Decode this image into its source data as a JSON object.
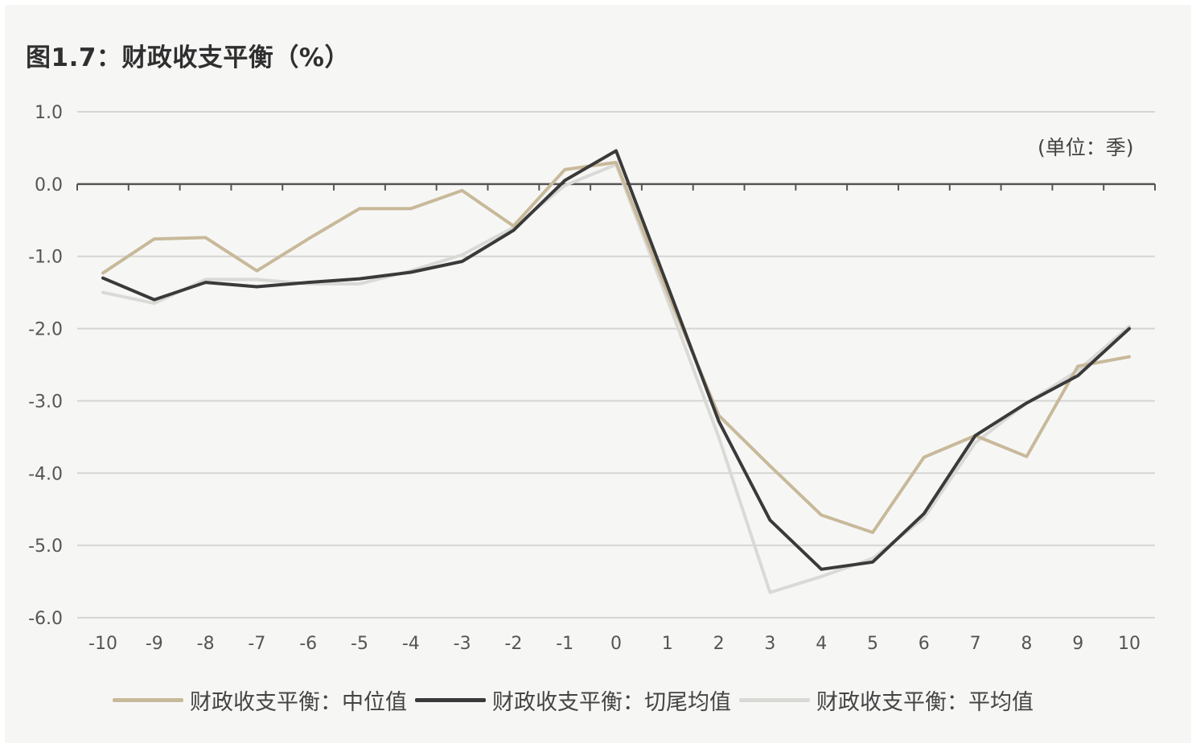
{
  "chart_data": {
    "type": "line",
    "title": "图1.7：财政收支平衡（%）",
    "unit_note": "(单位：季)",
    "x": [
      -10,
      -9,
      -8,
      -7,
      -6,
      -5,
      -4,
      -3,
      -2,
      -1,
      0,
      1,
      2,
      3,
      4,
      5,
      6,
      7,
      8,
      9,
      10
    ],
    "x_tick_labels": [
      "-10",
      "-9",
      "-8",
      "-7",
      "-6",
      "-5",
      "-4",
      "-3",
      "-2",
      "-1",
      "0",
      "1",
      "2",
      "3",
      "4",
      "5",
      "6",
      "7",
      "8",
      "9",
      "10"
    ],
    "ylim": [
      -6.0,
      1.0
    ],
    "y_ticks": [
      1.0,
      0.0,
      -1.0,
      -2.0,
      -3.0,
      -4.0,
      -5.0,
      -6.0
    ],
    "y_tick_labels": [
      "1.0",
      "0.0",
      "-1.0",
      "-2.0",
      "-3.0",
      "-4.0",
      "-5.0",
      "-6.0"
    ],
    "grid": "horizontal",
    "legend_position": "bottom",
    "series": [
      {
        "name": "财政收支平衡：中位值",
        "color": "#c8b99a",
        "values": [
          -1.23,
          -0.76,
          -0.74,
          -1.2,
          -0.76,
          -0.34,
          -0.34,
          -0.09,
          -0.58,
          0.2,
          0.3,
          -1.5,
          -3.2,
          -3.9,
          -4.58,
          -4.82,
          -3.78,
          -3.48,
          -3.77,
          -2.52,
          -2.39
        ]
      },
      {
        "name": "财政收支平衡：切尾均值",
        "color": "#3a3a3a",
        "values": [
          -1.3,
          -1.6,
          -1.36,
          -1.42,
          -1.36,
          -1.31,
          -1.22,
          -1.07,
          -0.64,
          0.05,
          0.46,
          -1.4,
          -3.28,
          -4.65,
          -5.33,
          -5.23,
          -4.56,
          -3.48,
          -3.03,
          -2.65,
          -2.0
        ]
      },
      {
        "name": "财政收支平衡：平均值",
        "color": "#d9d9d6",
        "values": [
          -1.5,
          -1.65,
          -1.32,
          -1.32,
          -1.38,
          -1.38,
          -1.2,
          -0.98,
          -0.6,
          -0.02,
          0.27,
          -1.6,
          -3.5,
          -5.65,
          -5.43,
          -5.18,
          -4.62,
          -3.58,
          -3.03,
          -2.58,
          -1.97
        ]
      }
    ]
  }
}
